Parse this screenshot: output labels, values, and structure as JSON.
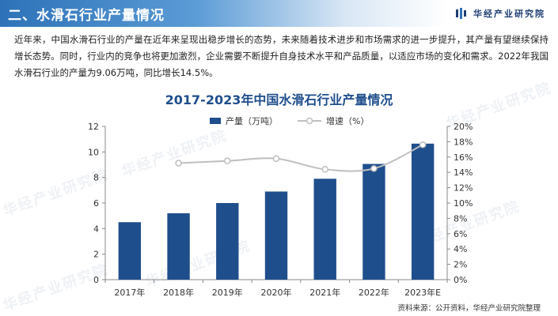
{
  "header": {
    "title": "二、水滑石行业产量情况"
  },
  "brand": {
    "name": "华经产业研究院",
    "icon": "brand-logo-icon"
  },
  "intro": {
    "text": "近年来，中国水滑石行业的产量在近年来呈现出稳步增长的态势，未来随着技术进步和市场需求的进一步提升，其产量有望继续保持增长态势。同时，行业内的竞争也将更加激烈，企业需要不断提升自身技术水平和产品质量，以适应市场的变化和需求。2022年我国水滑石行业的产量为9.06万吨，同比增长14.5%。"
  },
  "watermark": "华经产业研究院",
  "source": "资料来源：公开资料，华经产业研究院整理",
  "colors": {
    "bar": "#1f4e8c",
    "line": "#bfbfbf",
    "header": "#2d72b8"
  },
  "chart_data": {
    "type": "bar",
    "title": "2017-2023年中国水滑石行业产量情况",
    "categories": [
      "2017年",
      "2018年",
      "2019年",
      "2020年",
      "2021年",
      "2022年",
      "2023年E"
    ],
    "series": [
      {
        "name": "产量（万吨）",
        "type": "bar",
        "axis": "left",
        "values": [
          4.5,
          5.2,
          6.0,
          6.9,
          7.9,
          9.06,
          10.65
        ]
      },
      {
        "name": "增速（%）",
        "type": "line",
        "axis": "right",
        "values": [
          null,
          15.2,
          15.5,
          15.8,
          14.4,
          14.5,
          17.6
        ]
      }
    ],
    "ylim": [
      0,
      12
    ],
    "yticks": [
      "0",
      "2",
      "4",
      "6",
      "8",
      "10",
      "12"
    ],
    "y2lim": [
      0,
      20
    ],
    "y2ticks": [
      "0%",
      "2%",
      "4%",
      "6%",
      "8%",
      "10%",
      "12%",
      "14%",
      "16%",
      "18%",
      "20%"
    ],
    "legend_position": "top-center",
    "grid": false
  }
}
